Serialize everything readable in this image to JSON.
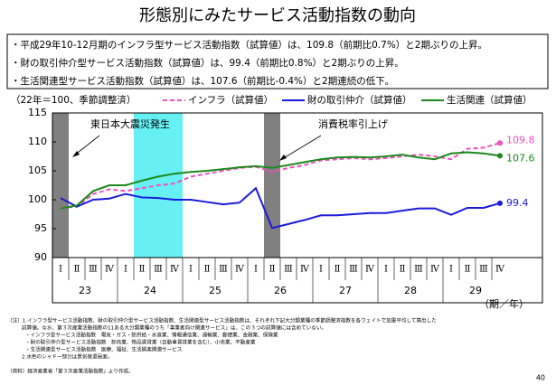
{
  "title": "形態別にみたサービス活動指数の動向",
  "bullets": [
    "・平成29年10-12月期のインフラ型サービス活動指数（試算値）は、109.8（前期比0.7%）と2期ぶりの上昇。",
    "・財の取引仲介型サービス活動指数（試算値）は、99.4（前期比0.8%）と2期ぶりの上昇。",
    "・生活関連型サービス活動指数（試算値）は、107.6（前期比-0.4%）と2期連続の低下。"
  ],
  "chart_data": {
    "type": "line",
    "y_label": "（22年＝100、季節調整済）",
    "x_label": "（期／年）",
    "categories": [
      "Ⅰ",
      "Ⅱ",
      "Ⅲ",
      "Ⅳ",
      "Ⅰ",
      "Ⅱ",
      "Ⅲ",
      "Ⅳ",
      "Ⅰ",
      "Ⅱ",
      "Ⅲ",
      "Ⅳ",
      "Ⅰ",
      "Ⅱ",
      "Ⅲ",
      "Ⅳ",
      "Ⅰ",
      "Ⅱ",
      "Ⅲ",
      "Ⅳ",
      "Ⅰ",
      "Ⅱ",
      "Ⅲ",
      "Ⅳ",
      "Ⅰ",
      "Ⅱ",
      "Ⅲ",
      "Ⅳ"
    ],
    "years": [
      "23",
      "24",
      "25",
      "26",
      "27",
      "28",
      "29"
    ],
    "ylim": [
      90,
      115
    ],
    "yticks": [
      90,
      95,
      100,
      105,
      110,
      115
    ],
    "series": [
      {
        "name": "インフラ（試算値）",
        "color": "#f050c0",
        "dash": true,
        "values": [
          98.6,
          98.8,
          101.0,
          101.8,
          101.5,
          102.0,
          102.5,
          102.8,
          104.0,
          104.5,
          105.0,
          105.5,
          105.7,
          104.8,
          105.5,
          106.0,
          106.8,
          107.0,
          107.2,
          107.0,
          107.2,
          107.5,
          107.8,
          107.5,
          107.0,
          108.8,
          109.0,
          109.8
        ]
      },
      {
        "name": "財の取引仲介（試算値）",
        "color": "#1a1adc",
        "dash": false,
        "values": [
          100.3,
          98.8,
          100.0,
          100.2,
          101.0,
          100.4,
          100.3,
          100.0,
          100.0,
          99.6,
          99.2,
          99.5,
          102.0,
          95.1,
          95.8,
          96.5,
          97.3,
          97.3,
          97.5,
          97.7,
          97.7,
          98.1,
          98.5,
          98.5,
          97.4,
          98.6,
          98.6,
          99.4
        ]
      },
      {
        "name": "生活関連（試算値）",
        "color": "#1a8a1a",
        "dash": false,
        "values": [
          98.5,
          99.0,
          101.5,
          102.5,
          102.5,
          103.3,
          104.0,
          104.5,
          104.8,
          105.0,
          105.3,
          105.6,
          105.8,
          105.5,
          106.0,
          106.5,
          107.0,
          107.3,
          107.4,
          107.3,
          107.5,
          107.8,
          107.3,
          107.0,
          108.0,
          108.2,
          108.0,
          107.6
        ]
      }
    ],
    "shades": [
      {
        "from": 0,
        "to": 0,
        "color": "#808080"
      },
      {
        "from": 5,
        "to": 7,
        "color": "#66f0f4"
      },
      {
        "from": 13,
        "to": 13,
        "color": "#808080"
      }
    ],
    "annotations": [
      "東日本大震災発生",
      "消費税率引上げ"
    ]
  },
  "footnotes": [
    "（注）1.インフラ型サービス活動指数、財の取引仲介型サービス活動指数、生活関連型サービス活動指数は、それぞれ下記大分類業種の季節調整済指数を各ウェイトで加重平均して算出した",
    "試算値。なお、第３次産業活動指数の11ある大分類業種のうち「事業者向け関連サービス」は、この３つの試算値には含めていない。",
    "・インフラ型サービス活動指数　電気・ガス・熱供給・水道業、情報通信業、運輸業、郵便業、金融業、保険業",
    "・財の取引仲介型サービス活動指数　卸売業、物品賃貸業（自動車賃貸業を含む）、小売業、不動産業",
    "・生活関連型サービス活動指数　医療、福祉、生活娯楽関連サービス",
    "2.水色のシャドー部分は景気後退局面。"
  ],
  "source": "（資料）経済産業省「第３次産業活動指数」より作成。",
  "page_number": "40"
}
